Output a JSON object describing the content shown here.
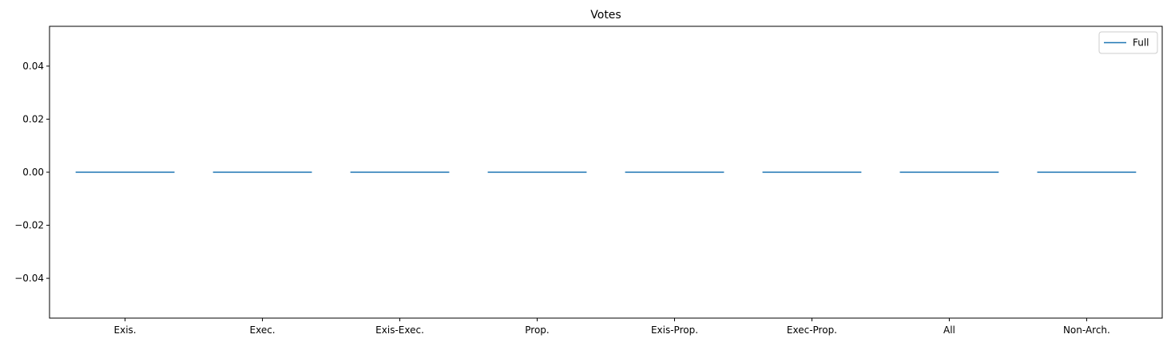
{
  "chart_data": {
    "type": "line",
    "title": "Votes",
    "xlabel": "",
    "ylabel": "",
    "categories": [
      "Exis.",
      "Exec.",
      "Exis-Exec.",
      "Prop.",
      "Exis-Prop.",
      "Exec-Prop.",
      "All",
      "Non-Arch."
    ],
    "ylim": [
      -0.055,
      0.055
    ],
    "yticks": [
      -0.04,
      -0.02,
      0.0,
      0.02,
      0.04
    ],
    "ytick_labels": [
      "−0.04",
      "−0.02",
      "0.00",
      "0.02",
      "0.04"
    ],
    "series": [
      {
        "name": "Full",
        "values": [
          0,
          0,
          0,
          0,
          0,
          0,
          0,
          0
        ]
      }
    ],
    "legend": {
      "placement": "top-right"
    },
    "grid": false,
    "colors": {
      "series": "#1f77b4",
      "axes": "#000000"
    }
  }
}
